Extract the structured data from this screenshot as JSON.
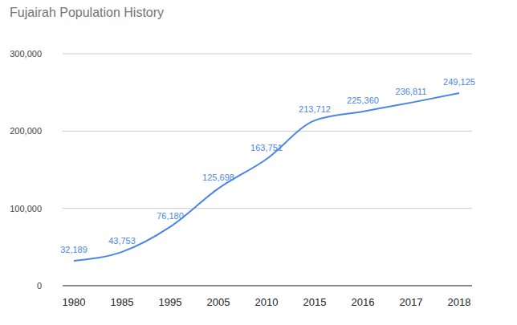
{
  "chart_data": {
    "type": "line",
    "title": "Fujairah Population History",
    "categories": [
      "1980",
      "1985",
      "1995",
      "2005",
      "2010",
      "2015",
      "2016",
      "2017",
      "2018"
    ],
    "values": [
      32189,
      43753,
      76180,
      125698,
      163751,
      213712,
      225360,
      236811,
      249125
    ],
    "value_labels": [
      "32,189",
      "43,753",
      "76,180",
      "125,698",
      "163,751",
      "213,712",
      "225,360",
      "236,811",
      "249,125"
    ],
    "color": "#4a86e8",
    "ylim": [
      0,
      300000
    ],
    "yticks": [
      0,
      {
        "value": 100000,
        "label": "100,000"
      },
      {
        "value": 200000,
        "label": "200,000"
      },
      {
        "value": 300000,
        "label": "300,000"
      }
    ],
    "grid": true,
    "data_labels": true
  }
}
